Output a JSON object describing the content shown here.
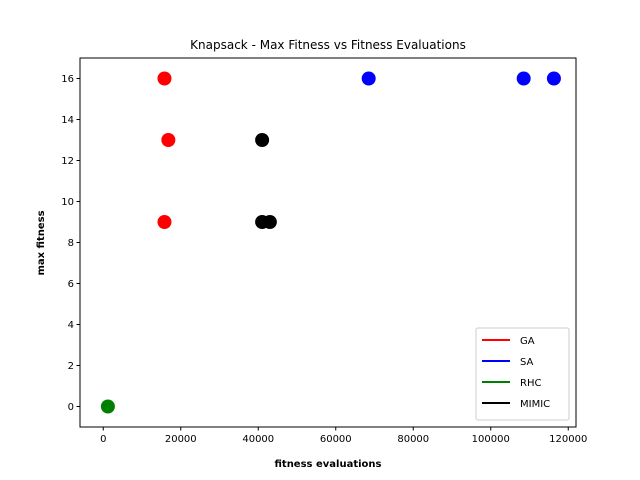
{
  "chart_data": {
    "type": "scatter",
    "title": "Knapsack - Max Fitness vs Fitness Evaluations",
    "xlabel": "fitness evaluations",
    "ylabel": "max fitness",
    "xlim": [
      -6000,
      122000
    ],
    "ylim": [
      -1,
      17
    ],
    "xticks": [
      0,
      20000,
      40000,
      60000,
      80000,
      100000,
      120000
    ],
    "yticks": [
      0,
      2,
      4,
      6,
      8,
      10,
      12,
      14,
      16
    ],
    "grid": false,
    "legend_position": "bottom-right",
    "series": [
      {
        "name": "GA",
        "color": "#ff0000",
        "points": [
          {
            "x": 15800,
            "y": 16
          },
          {
            "x": 16800,
            "y": 13
          },
          {
            "x": 15800,
            "y": 9
          }
        ]
      },
      {
        "name": "SA",
        "color": "#0000ff",
        "points": [
          {
            "x": 68500,
            "y": 16
          },
          {
            "x": 108500,
            "y": 16
          },
          {
            "x": 116300,
            "y": 16
          }
        ]
      },
      {
        "name": "RHC",
        "color": "#008000",
        "points": [
          {
            "x": 1200,
            "y": 0
          }
        ]
      },
      {
        "name": "MIMIC",
        "color": "#000000",
        "points": [
          {
            "x": 41000,
            "y": 13
          },
          {
            "x": 41000,
            "y": 9
          },
          {
            "x": 43000,
            "y": 9
          }
        ]
      }
    ]
  }
}
